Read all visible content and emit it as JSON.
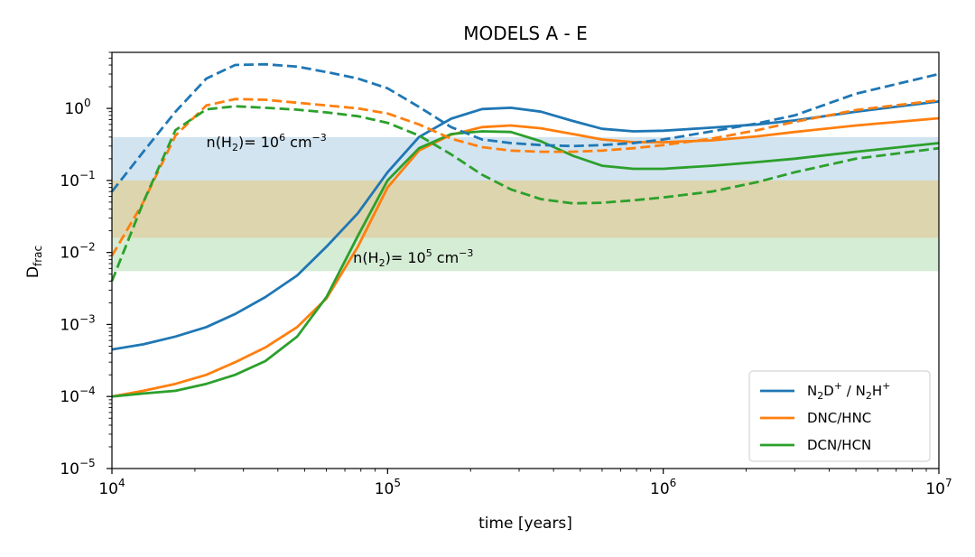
{
  "chart_data": {
    "type": "line",
    "title": "MODELS A - E",
    "xlabel": "time [years]",
    "ylabel": "D",
    "ylabel_sub": "frac",
    "xscale": "log",
    "yscale": "log",
    "xlim": [
      10000,
      10000000
    ],
    "ylim": [
      1e-05,
      6
    ],
    "x_ticks": [
      {
        "value": 10000,
        "base": "10",
        "exp": "4"
      },
      {
        "value": 100000,
        "base": "10",
        "exp": "5"
      },
      {
        "value": 1000000,
        "base": "10",
        "exp": "6"
      },
      {
        "value": 10000000,
        "base": "10",
        "exp": "7"
      }
    ],
    "y_ticks": [
      {
        "value": 1e-05,
        "base": "10",
        "exp": "−5"
      },
      {
        "value": 0.0001,
        "base": "10",
        "exp": "−4"
      },
      {
        "value": 0.001,
        "base": "10",
        "exp": "−3"
      },
      {
        "value": 0.01,
        "base": "10",
        "exp": "−2"
      },
      {
        "value": 0.1,
        "base": "10",
        "exp": "−1"
      },
      {
        "value": 1,
        "base": "10",
        "exp": "0"
      }
    ],
    "bands": [
      {
        "name": "band-n2d",
        "range": [
          0.1,
          0.4
        ],
        "color": "#1f77b4",
        "opacity": 0.2
      },
      {
        "name": "band-dcn",
        "range": [
          0.0055,
          0.1
        ],
        "color": "#2ca02c",
        "opacity": 0.2
      },
      {
        "name": "band-dnc",
        "range": [
          0.016,
          0.1
        ],
        "color": "#ff7f0e",
        "opacity": 0.2
      }
    ],
    "annotations": [
      {
        "name": "annotation-high-density",
        "x": 22000,
        "y": 0.29,
        "prefix": "n(H",
        "sub": "2",
        "mid": ")= 10",
        "sup": "6",
        "suffix": " cm",
        "sup2": "−3"
      },
      {
        "name": "annotation-low-density",
        "x": 75000,
        "y": 0.0072,
        "prefix": "n(H",
        "sub": "2",
        "mid": ")= 10",
        "sup": "5",
        "suffix": " cm",
        "sup2": "−3"
      }
    ],
    "series": [
      {
        "name": "N2D+ / N2H+ solid",
        "species": "n2dp",
        "color": "#1f77b4",
        "style": "solid",
        "x": [
          10000,
          13000,
          17000,
          22000,
          28000,
          36000,
          47000,
          60000,
          78000,
          100000,
          130000,
          170000,
          220000,
          280000,
          360000,
          470000,
          600000,
          780000,
          1000000,
          1500000,
          2200000,
          3000000,
          5000000,
          10000000
        ],
        "y": [
          0.00045,
          0.00053,
          0.00068,
          0.00092,
          0.0014,
          0.0024,
          0.0048,
          0.012,
          0.035,
          0.13,
          0.4,
          0.72,
          0.98,
          1.02,
          0.9,
          0.67,
          0.52,
          0.48,
          0.49,
          0.54,
          0.6,
          0.68,
          0.9,
          1.25
        ]
      },
      {
        "name": "DNC/HNC solid",
        "species": "dnc",
        "color": "#ff7f0e",
        "style": "solid",
        "x": [
          10000,
          13000,
          17000,
          22000,
          28000,
          36000,
          47000,
          60000,
          78000,
          100000,
          130000,
          170000,
          220000,
          280000,
          360000,
          470000,
          600000,
          780000,
          1000000,
          1500000,
          2200000,
          3000000,
          5000000,
          10000000
        ],
        "y": [
          0.0001,
          0.00012,
          0.00015,
          0.0002,
          0.0003,
          0.00048,
          0.00092,
          0.0023,
          0.012,
          0.08,
          0.26,
          0.43,
          0.55,
          0.58,
          0.53,
          0.44,
          0.37,
          0.34,
          0.34,
          0.36,
          0.41,
          0.47,
          0.58,
          0.73
        ]
      },
      {
        "name": "DCN/HCN solid",
        "species": "dcn",
        "color": "#2ca02c",
        "style": "solid",
        "x": [
          10000,
          13000,
          17000,
          22000,
          28000,
          36000,
          47000,
          60000,
          78000,
          100000,
          130000,
          170000,
          220000,
          280000,
          360000,
          470000,
          600000,
          780000,
          1000000,
          1500000,
          2200000,
          3000000,
          5000000,
          10000000
        ],
        "y": [
          0.0001,
          0.00011,
          0.00012,
          0.00015,
          0.0002,
          0.00031,
          0.00068,
          0.0024,
          0.017,
          0.1,
          0.28,
          0.44,
          0.48,
          0.47,
          0.35,
          0.22,
          0.16,
          0.145,
          0.145,
          0.16,
          0.18,
          0.2,
          0.25,
          0.33
        ]
      },
      {
        "name": "N2D+ / N2H+ dashed",
        "species": "n2dp",
        "color": "#1f77b4",
        "style": "dashed",
        "x": [
          10000,
          13000,
          17000,
          22000,
          28000,
          36000,
          47000,
          60000,
          78000,
          100000,
          130000,
          170000,
          220000,
          280000,
          360000,
          470000,
          600000,
          780000,
          1000000,
          1500000,
          2200000,
          3000000,
          5000000,
          10000000
        ],
        "y": [
          0.07,
          0.25,
          0.9,
          2.6,
          4.0,
          4.1,
          3.8,
          3.2,
          2.6,
          1.9,
          1.05,
          0.55,
          0.37,
          0.33,
          0.31,
          0.3,
          0.31,
          0.33,
          0.37,
          0.48,
          0.62,
          0.8,
          1.6,
          3.0
        ]
      },
      {
        "name": "DNC/HNC dashed",
        "species": "dnc",
        "color": "#ff7f0e",
        "style": "dashed",
        "x": [
          10000,
          13000,
          17000,
          22000,
          28000,
          36000,
          47000,
          60000,
          78000,
          100000,
          130000,
          170000,
          220000,
          280000,
          360000,
          470000,
          600000,
          780000,
          1000000,
          1500000,
          2200000,
          3000000,
          5000000,
          10000000
        ],
        "y": [
          0.009,
          0.05,
          0.42,
          1.1,
          1.35,
          1.32,
          1.2,
          1.1,
          1.0,
          0.85,
          0.6,
          0.38,
          0.29,
          0.26,
          0.25,
          0.25,
          0.26,
          0.28,
          0.31,
          0.38,
          0.5,
          0.65,
          0.95,
          1.3
        ]
      },
      {
        "name": "DCN/HCN dashed",
        "species": "dcn",
        "color": "#2ca02c",
        "style": "dashed",
        "x": [
          10000,
          13000,
          17000,
          22000,
          28000,
          36000,
          47000,
          60000,
          78000,
          100000,
          130000,
          170000,
          220000,
          280000,
          360000,
          470000,
          600000,
          780000,
          1000000,
          1500000,
          2200000,
          3000000,
          5000000,
          10000000
        ],
        "y": [
          0.004,
          0.05,
          0.5,
          0.97,
          1.07,
          1.02,
          0.96,
          0.88,
          0.78,
          0.63,
          0.42,
          0.23,
          0.12,
          0.075,
          0.055,
          0.048,
          0.049,
          0.053,
          0.058,
          0.07,
          0.095,
          0.13,
          0.2,
          0.28
        ]
      }
    ],
    "legend": {
      "placement": "lower-right",
      "entries": [
        {
          "name": "legend-n2dp",
          "color": "#1f77b4",
          "parts": [
            [
              "N",
              "n"
            ],
            [
              "2",
              "sub"
            ],
            [
              "D",
              "n"
            ],
            [
              "+",
              "sup"
            ],
            [
              " / N",
              "n"
            ],
            [
              "2",
              "sub"
            ],
            [
              "H",
              "n"
            ],
            [
              "+",
              "sup"
            ]
          ]
        },
        {
          "name": "legend-dnc",
          "color": "#ff7f0e",
          "parts": [
            [
              "DNC/HNC",
              "n"
            ]
          ]
        },
        {
          "name": "legend-dcn",
          "color": "#2ca02c",
          "parts": [
            [
              "DCN/HCN",
              "n"
            ]
          ]
        }
      ]
    }
  }
}
